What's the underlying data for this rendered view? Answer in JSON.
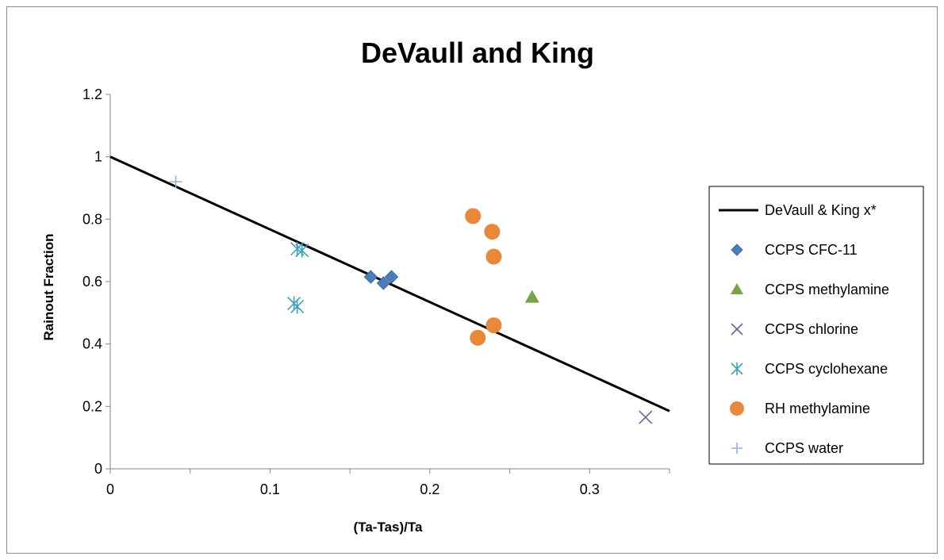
{
  "chart_data": {
    "type": "scatter",
    "title": "DeVaull and King",
    "xlabel": "(Ta-Tas)/Ta",
    "ylabel": "Rainout Fraction",
    "xlim": [
      0,
      0.35
    ],
    "ylim": [
      0,
      1.2
    ],
    "x_ticks": [
      0,
      0.1,
      0.2,
      0.3
    ],
    "x_tick_labels": [
      "0",
      "0.1",
      "0.2",
      "0.3"
    ],
    "y_ticks": [
      0,
      0.2,
      0.4,
      0.6,
      0.8,
      1.0,
      1.2
    ],
    "y_tick_labels": [
      "0",
      "0.2",
      "0.4",
      "0.6",
      "0.8",
      "1",
      "1.2"
    ],
    "grid": false,
    "legend_position": "right",
    "series": [
      {
        "name": "DeVaull & King x*",
        "kind": "line",
        "color": "#000000",
        "x": [
          0,
          0.35
        ],
        "y": [
          1.0,
          0.185
        ]
      },
      {
        "name": "CCPS CFC-11",
        "kind": "marker",
        "marker": "diamond",
        "color": "#4a7ebb",
        "x": [
          0.163,
          0.171,
          0.176
        ],
        "y": [
          0.615,
          0.595,
          0.615
        ]
      },
      {
        "name": "CCPS methylamine",
        "kind": "marker",
        "marker": "triangle",
        "color": "#77a345",
        "x": [
          0.264
        ],
        "y": [
          0.55
        ]
      },
      {
        "name": "CCPS chlorine",
        "kind": "marker",
        "marker": "x",
        "color": "#7b5a9e",
        "x": [
          0.335
        ],
        "y": [
          0.165
        ]
      },
      {
        "name": "CCPS cyclohexane",
        "kind": "marker",
        "marker": "star",
        "color": "#3ea1b8",
        "x": [
          0.117,
          0.12,
          0.115,
          0.117
        ],
        "y": [
          0.705,
          0.7,
          0.53,
          0.52
        ]
      },
      {
        "name": "RH methylamine",
        "kind": "marker",
        "marker": "circle",
        "color": "#e8883a",
        "x": [
          0.227,
          0.239,
          0.24,
          0.23,
          0.24
        ],
        "y": [
          0.81,
          0.76,
          0.68,
          0.42,
          0.46
        ]
      },
      {
        "name": "CCPS water",
        "kind": "marker",
        "marker": "plus",
        "color": "#8eb4e3",
        "x": [
          0.041
        ],
        "y": [
          0.92
        ]
      }
    ]
  }
}
